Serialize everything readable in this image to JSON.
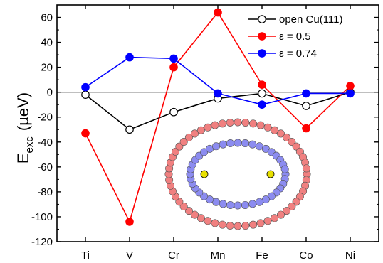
{
  "chart_data": {
    "type": "line",
    "title": "",
    "xlabel": "",
    "ylabel": {
      "main": "E",
      "sub": "exc",
      "unit": "(µeV)"
    },
    "categories": [
      "Ti",
      "V",
      "Cr",
      "Mn",
      "Fe",
      "Co",
      "Ni"
    ],
    "ylim": [
      -120,
      70
    ],
    "yticks": [
      60,
      40,
      20,
      0,
      -20,
      -40,
      -60,
      -80,
      -100,
      -120
    ],
    "grid": false,
    "zero_line": true,
    "legend_position": "top-right",
    "series": [
      {
        "name": "open Cu(111)",
        "color": "#000000",
        "marker_fill": "#ffffff",
        "values": [
          -2,
          -30,
          -16,
          -5,
          -1,
          -11,
          0
        ]
      },
      {
        "name": "ε = 0.5",
        "color": "#ff0000",
        "marker_fill": "#ff0000",
        "values": [
          -33,
          -104,
          20,
          64,
          6,
          -29,
          5
        ]
      },
      {
        "name": "ε = 0.74",
        "color": "#0000ff",
        "marker_fill": "#0000ff",
        "values": [
          4,
          28,
          27,
          -1,
          -10,
          -1,
          -1
        ]
      }
    ],
    "inset": {
      "description_icon": "quantum-corral-inset",
      "outer_atom_color": "#f08080",
      "inner_atom_color": "#8c8cf0",
      "adatom_color": "#e8e000"
    }
  }
}
